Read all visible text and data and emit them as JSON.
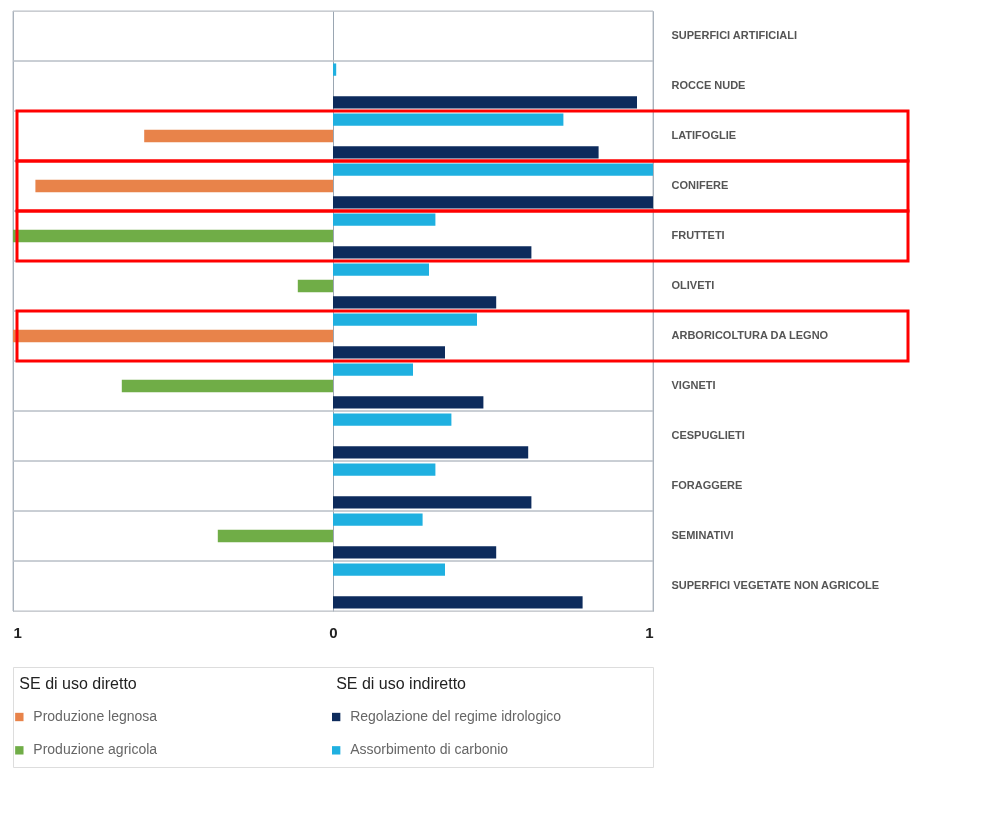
{
  "chart_data": {
    "type": "bar",
    "orientation": "horizontal",
    "categories": [
      "SUPERFICI ARTIFICIALI",
      "ROCCE NUDE",
      "LATIFOGLIE",
      "CONIFERE",
      "FRUTTETI",
      "OLIVETI",
      "ARBORICOLTURA DA LEGNO",
      "VIGNETI",
      "CESPUGLIETI",
      "FORAGGERE",
      "SEMINATIVI",
      "SUPERFICI VEGETATE NON AGRICOLE"
    ],
    "series": [
      {
        "name": "Produzione legnosa",
        "color": "#e8834a",
        "values": [
          null,
          null,
          -0.59,
          -0.93,
          null,
          null,
          -1.0,
          null,
          null,
          null,
          null,
          null
        ]
      },
      {
        "name": "Produzione agricola",
        "color": "#70ad47",
        "values": [
          null,
          null,
          null,
          null,
          -1.0,
          -0.11,
          null,
          -0.66,
          null,
          null,
          -0.36,
          null
        ]
      },
      {
        "name": "Regolazione del regime idrologico",
        "color": "#0d2b5c",
        "values": [
          null,
          0.95,
          0.83,
          1.0,
          0.62,
          0.51,
          0.35,
          0.47,
          0.61,
          0.62,
          0.51,
          0.78
        ]
      },
      {
        "name": "Assorbimento di carbonio",
        "color": "#1fb0e0",
        "values": [
          null,
          0.01,
          0.72,
          1.0,
          0.32,
          0.3,
          0.45,
          0.25,
          0.37,
          0.32,
          0.28,
          0.35
        ]
      }
    ],
    "legend_title": [
      "SE di uso diretto",
      "SE di uso indiretto"
    ],
    "xlim": [
      -1,
      1
    ],
    "xticks": [
      {
        "value": -1,
        "label": "1"
      },
      0,
      1
    ],
    "grid": "x",
    "legend": "bottom"
  }
}
